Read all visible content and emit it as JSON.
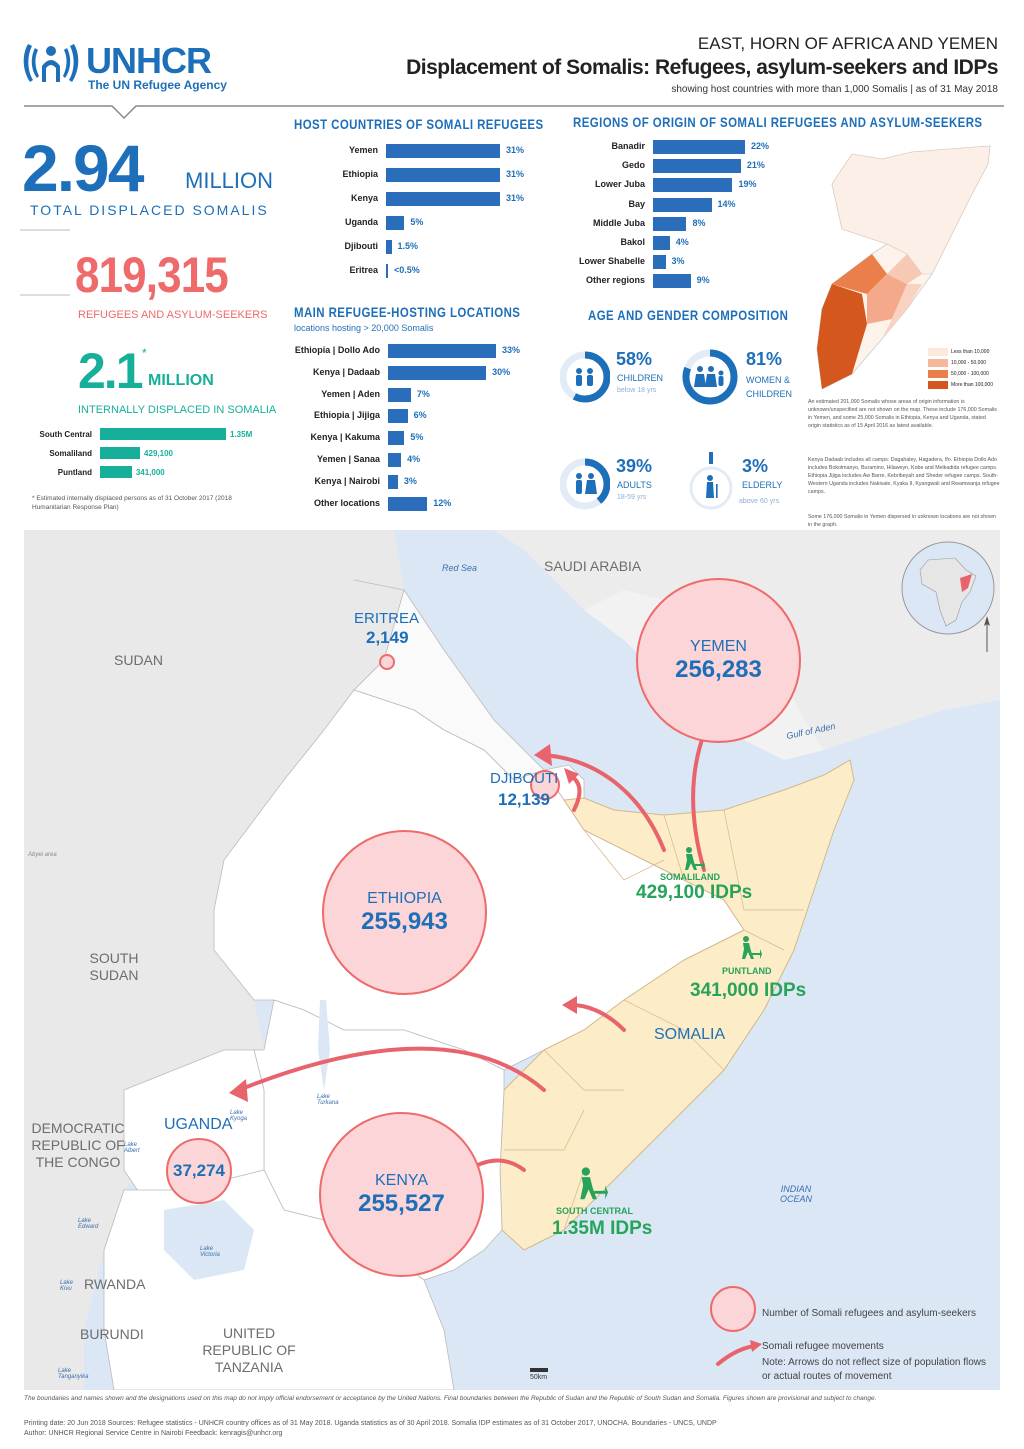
{
  "header": {
    "logo_text": "UNHCR",
    "logo_subtitle": "The UN Refugee Agency",
    "region": "EAST, HORN OF AFRICA AND YEMEN",
    "title": "Displacement of Somalis: Refugees, asylum-seekers and IDPs",
    "subtitle": "showing host countries with more than 1,000 Somalis | as of 31 May 2018"
  },
  "totals": {
    "total_value": "2.94",
    "total_unit": "MILLION",
    "total_label": "TOTAL DISPLACED SOMALIS",
    "refugees_value": "819,315",
    "refugees_label": "REFUGEES AND ASYLUM-SEEKERS",
    "idp_value": "2.1",
    "idp_star": "*",
    "idp_unit": "MILLION",
    "idp_label": "INTERNALLY DISPLACED IN SOMALIA",
    "idp_note": "* Estimated internally displaced persons as of 31 October 2017 (2018 Humanitarian Response Plan)"
  },
  "idp_regions": [
    {
      "name": "South Central",
      "value_label": "1.35M",
      "value": 1350000
    },
    {
      "name": "Somaliland",
      "value_label": "429,100",
      "value": 429100
    },
    {
      "name": "Puntland",
      "value_label": "341,000",
      "value": 341000
    }
  ],
  "host_countries": {
    "title": "HOST COUNTRIES OF SOMALI REFUGEES",
    "items": [
      {
        "name": "Yemen",
        "label": "31%",
        "value": 31
      },
      {
        "name": "Ethiopia",
        "label": "31%",
        "value": 31
      },
      {
        "name": "Kenya",
        "label": "31%",
        "value": 31
      },
      {
        "name": "Uganda",
        "label": "5%",
        "value": 5
      },
      {
        "name": "Djibouti",
        "label": "1.5%",
        "value": 1.5
      },
      {
        "name": "Eritrea",
        "label": "<0.5%",
        "value": 0.3
      }
    ]
  },
  "locations": {
    "title": "MAIN REFUGEE-HOSTING LOCATIONS",
    "subtitle": "locations hosting > 20,000 Somalis",
    "items": [
      {
        "name": "Ethiopia | Dollo Ado",
        "label": "33%",
        "value": 33
      },
      {
        "name": "Kenya | Dadaab",
        "label": "30%",
        "value": 30
      },
      {
        "name": "Yemen | Aden",
        "label": "7%",
        "value": 7
      },
      {
        "name": "Ethiopia | Jijiga",
        "label": "6%",
        "value": 6
      },
      {
        "name": "Kenya | Kakuma",
        "label": "5%",
        "value": 5
      },
      {
        "name": "Yemen | Sanaa",
        "label": "4%",
        "value": 4
      },
      {
        "name": "Kenya | Nairobi",
        "label": "3%",
        "value": 3
      },
      {
        "name": "Other locations",
        "label": "12%",
        "value": 12
      }
    ]
  },
  "origins": {
    "title": "REGIONS OF ORIGIN OF SOMALI REFUGEES AND ASYLUM-SEEKERS",
    "items": [
      {
        "name": "Banadir",
        "label": "22%",
        "value": 22
      },
      {
        "name": "Gedo",
        "label": "21%",
        "value": 21
      },
      {
        "name": "Lower Juba",
        "label": "19%",
        "value": 19
      },
      {
        "name": "Bay",
        "label": "14%",
        "value": 14
      },
      {
        "name": "Middle Juba",
        "label": "8%",
        "value": 8
      },
      {
        "name": "Bakol",
        "label": "4%",
        "value": 4
      },
      {
        "name": "Lower Shabelle",
        "label": "3%",
        "value": 3
      },
      {
        "name": "Other regions",
        "label": "9%",
        "value": 9
      }
    ]
  },
  "demographics": {
    "title": "AGE AND GENDER COMPOSITION",
    "children": {
      "pct": "58%",
      "label": "CHILDREN",
      "sub": "below 18 yrs",
      "value": 58
    },
    "women": {
      "pct": "81%",
      "label": "WOMEN & CHILDREN",
      "value": 81
    },
    "adults": {
      "pct": "39%",
      "label": "ADULTS",
      "sub": "18-59 yrs",
      "value": 39
    },
    "elderly": {
      "pct": "3%",
      "label": "ELDERLY",
      "sub": "above 60 yrs",
      "value": 3
    }
  },
  "inset_legend": [
    "Less than 10,000",
    "10,000 - 50,000",
    "50,000 - 100,000",
    "More than 100,000"
  ],
  "inset_notes": [
    "An estimated 201,000 Somalis whose areas of origin information is unknown/unspecified are not shown on the map. These include 176,000 Somalis in Yemen, and some 25,000 Somalis in Ethiopia, Kenya and Uganda, stated origin statistics as of 15 April 2016 as latest available.",
    "Kenya Dadaab includes all camps: Dagahaley, Hagadera, Ifo. Ethiopia Dollo Ado includes Bokolmanyo, Buramino, Hilaweyn, Kobe and Melkadida refugee camps. Ethiopia Jijiga includes Aw Barre, Kebribeyah and Sheder refugee camps. South-Western Uganda includes Nakivale, Kyaka II, Kyangwali and Rwamwanja refugee camps.",
    "Some 176,000 Somalis in Yemen dispersed in unknown locations are not shown in the graph."
  ],
  "map": {
    "circles": [
      {
        "name": "YEMEN",
        "value": "256,283"
      },
      {
        "name": "ETHIOPIA",
        "value": "255,943"
      },
      {
        "name": "KENYA",
        "value": "255,527"
      },
      {
        "name": "UGANDA",
        "value": "37,274"
      },
      {
        "name": "DJIBOUTI",
        "value": "12,139"
      },
      {
        "name": "ERITREA",
        "value": "2,149"
      }
    ],
    "countries": {
      "saudi": "SAUDI ARABIA",
      "sudan": "SUDAN",
      "south_sudan": "SOUTH SUDAN",
      "drc": "DEMOCRATIC REPUBLIC OF THE CONGO",
      "rwanda": "RWANDA",
      "burundi": "BURUNDI",
      "tanzania": "UNITED REPUBLIC OF TANZANIA",
      "somalia": "SOMALIA"
    },
    "idps": {
      "somaliland_name": "SOMALILAND",
      "somaliland_value": "429,100 IDPs",
      "puntland_name": "PUNTLAND",
      "puntland_value": "341,000 IDPs",
      "south_name": "SOUTH CENTRAL",
      "south_value": "1.35M IDPs"
    },
    "water": {
      "red_sea": "Red Sea",
      "gulf_aden": "Gulf of Aden",
      "indian_ocean": "INDIAN OCEAN",
      "lake_turkana": "Lake Turkana",
      "lake_albert": "Lake Albert",
      "lake_kyoga": "Lake Kyoga",
      "lake_victoria": "Lake Victoria",
      "lake_edward": "Lake Edward",
      "lake_kivu": "Lake Kivu",
      "lake_tanganyika": "Lake Tanganyika",
      "abyei": "Abyei area"
    },
    "scale": "50km",
    "legend_circle": "Number of Somali refugees and asylum-seekers",
    "legend_arrow": "Somali refugee movements",
    "legend_note": "Note: Arrows do not reflect size of population flows or actual routes of movement"
  },
  "footer": {
    "disclaimer": "The boundaries and names shown and the designations used on this map do not imply official endorsement or acceptance by the United Nations. Final boundaries between the Republic of Sudan and the Republic of South Sudan and Somalia. Figures shown are provisional and subject to change.",
    "printing": "Printing date: 20 Jun 2018    Sources: Refugee statistics - UNHCR country offices as of 31 May 2018. Uganda statistics as of 30 April 2018. Somalia IDP estimates as of 31 October 2017, UNOCHA. Boundaries - UNCS, UNDP",
    "author": "Author: UNHCR Regional Service Centre in Nairobi    Feedback: kenragis@unhcr.org"
  },
  "colors": {
    "blue": "#1e6fb9",
    "red": "#ef6a6a",
    "green": "#27a35a",
    "teal": "#16b09a",
    "somalia_fill": "#fdecc8"
  }
}
